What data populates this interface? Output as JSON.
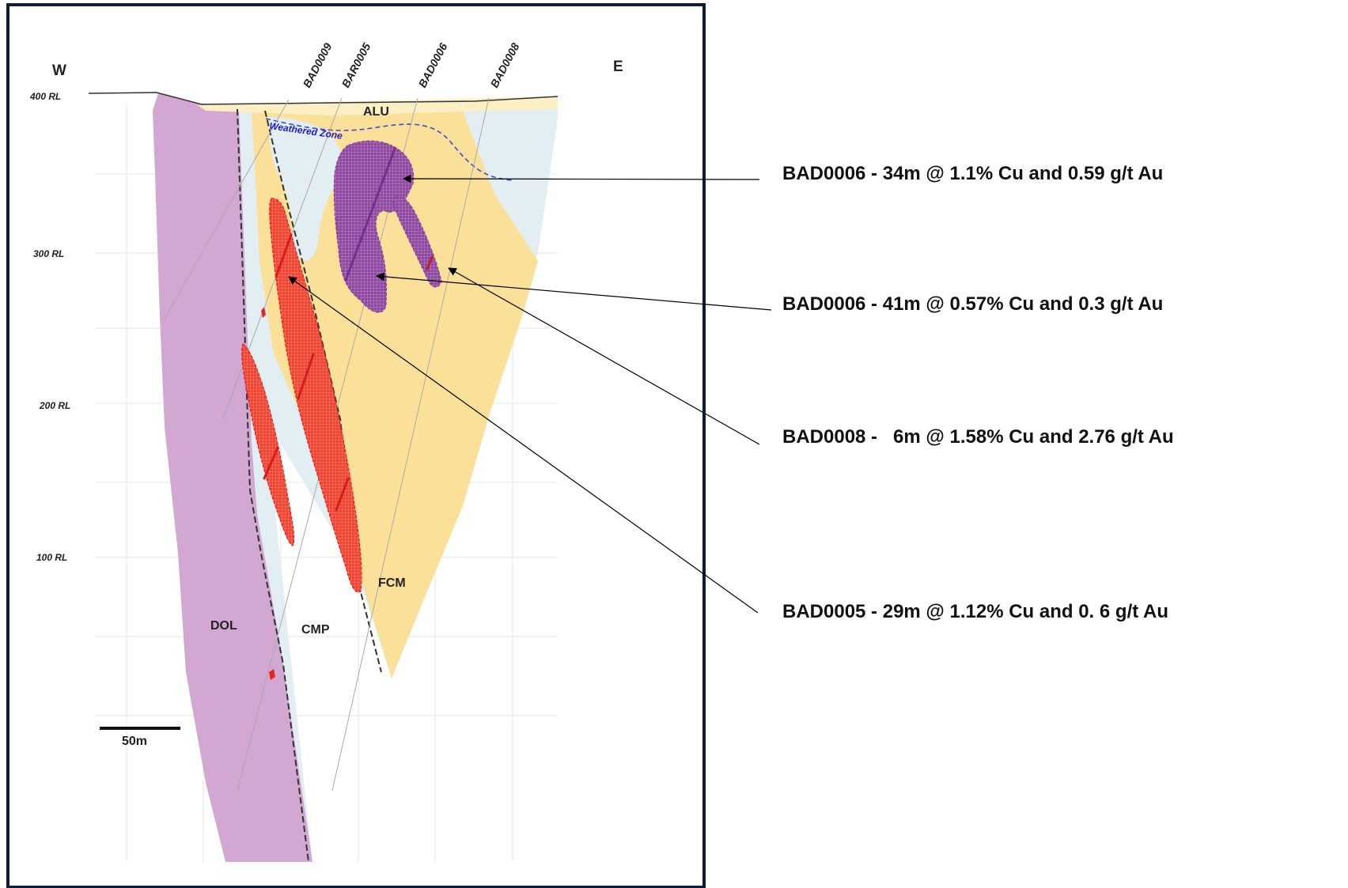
{
  "directions": {
    "west": "W",
    "east": "E"
  },
  "rl_labels": [
    "400 RL",
    "300 RL",
    "200 RL",
    "100 RL"
  ],
  "drillholes": [
    "BAD0009",
    "BAR0005",
    "BAD0006",
    "BAD0008"
  ],
  "units": {
    "alu": "ALU",
    "fcm": "FCM",
    "dol": "DOL",
    "cmp": "CMP"
  },
  "weathered_zone": "Weathered Zone",
  "scale_bar": "50m",
  "intercepts": [
    "BAD0006 - 34m @ 1.1% Cu and 0.59 g/t Au",
    "BAD0006 - 41m @ 0.57% Cu and 0.3 g/t Au",
    "BAD0008 -   6m @ 1.58% Cu and 2.76 g/t Au",
    "BAD0005 - 29m @ 1.12% Cu and 0. 6 g/t Au"
  ],
  "colors": {
    "dolomite": "#d2a8d2",
    "fcm": "#fbe09a",
    "cmp": "#e3eef3",
    "alluvium": "#fdefc4",
    "high_grade_red": "#f2261e",
    "purple_zone": "#8a3f9a",
    "frame": "#0f1f33"
  }
}
